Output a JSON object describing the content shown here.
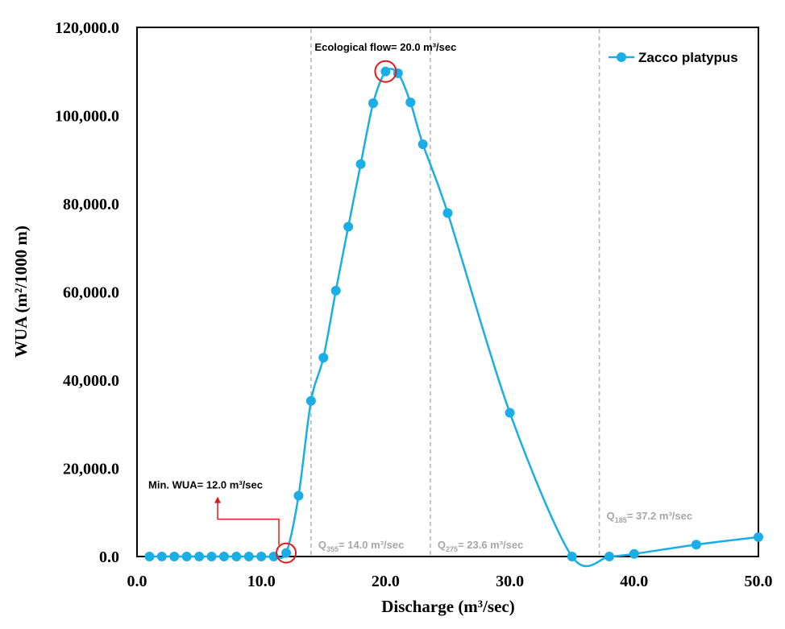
{
  "chart_data": {
    "type": "line",
    "xlabel": "Discharge (m³/sec)",
    "ylabel": "WUA (m²/1000 m)",
    "xlim": [
      0,
      50
    ],
    "ylim": [
      0,
      120000
    ],
    "x_ticks": [
      "0.0",
      "10.0",
      "20.0",
      "30.0",
      "40.0",
      "50.0"
    ],
    "y_ticks": [
      "0.0",
      "20,000.0",
      "40,000.0",
      "60,000.0",
      "80,000.0",
      "100,000.0",
      "120,000.0"
    ],
    "legend_position": "top-right",
    "series": [
      {
        "name": "Zacco platypus",
        "color": "#1aaee6",
        "x": [
          1,
          2,
          3,
          4,
          5,
          6,
          7,
          8,
          9,
          10,
          11,
          12,
          13,
          14,
          15,
          16,
          17,
          18,
          19,
          20,
          21,
          22,
          23,
          25,
          30,
          35,
          38,
          40,
          45,
          50
        ],
        "y": [
          0,
          0,
          0,
          0,
          0,
          0,
          0,
          0,
          0,
          0,
          0,
          800,
          13800,
          35300,
          45100,
          60300,
          74800,
          89000,
          102800,
          110000,
          109600,
          103000,
          93500,
          77900,
          32600,
          0,
          0,
          600,
          2700,
          4400
        ]
      }
    ],
    "reference_lines": [
      {
        "x": 14.0,
        "label_q": "Q",
        "label_sub": "355",
        "label_rest": "= 14.0 m³/sec"
      },
      {
        "x": 23.6,
        "label_q": "Q",
        "label_sub": "275",
        "label_rest": "= 23.6 m³/sec"
      },
      {
        "x": 37.2,
        "label_q": "Q",
        "label_sub": "185",
        "label_rest": "= 37.2 m³/sec"
      }
    ],
    "annotations": {
      "ecological_flow": {
        "text": "Ecological flow= 20.0 m³/sec",
        "x": 20,
        "y": 110000
      },
      "min_wua": {
        "text": "Min. WUA= 12.0 m³/sec",
        "x": 12,
        "y": 800
      }
    },
    "grid": false
  }
}
